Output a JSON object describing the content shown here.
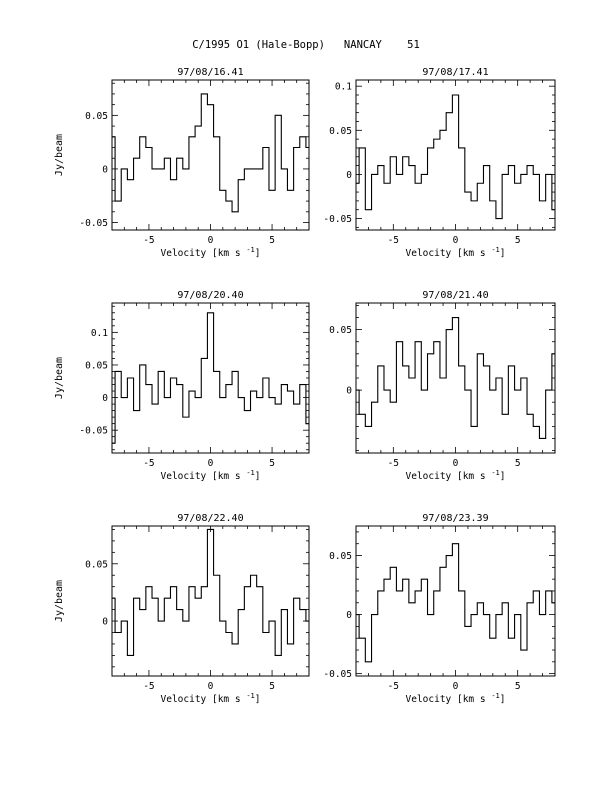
{
  "figure": {
    "title": "C/1995 O1 (Hale-Bopp)   NANCAY    51"
  },
  "chart_data": [
    {
      "type": "line",
      "title": "97/08/16.41",
      "xlabel": "Velocity [km s⁻¹]",
      "ylabel": "Jy/beam",
      "xlim": [
        -8,
        8
      ],
      "ylim": [
        -0.057,
        0.083
      ],
      "xticks": [
        -5,
        0,
        5
      ],
      "yticks": [
        -0.05,
        0,
        0.05
      ],
      "ytick_labels": [
        "-0.05",
        "0",
        "0.05"
      ],
      "series": [
        {
          "x": [
            -8.0,
            -7.5,
            -7.0,
            -6.5,
            -6.0,
            -5.5,
            -5.0,
            -4.5,
            -4.0,
            -3.5,
            -3.0,
            -2.5,
            -2.0,
            -1.5,
            -1.0,
            -0.5,
            0.0,
            0.5,
            1.0,
            1.5,
            2.0,
            2.5,
            3.0,
            3.5,
            4.0,
            4.5,
            5.0,
            5.5,
            6.0,
            6.5,
            7.0,
            7.5,
            8.0
          ],
          "y": [
            0.03,
            -0.03,
            0.0,
            -0.01,
            0.01,
            0.03,
            0.02,
            0.0,
            0.0,
            0.01,
            -0.01,
            0.01,
            0.0,
            0.03,
            0.04,
            0.07,
            0.06,
            0.03,
            -0.02,
            -0.03,
            -0.04,
            -0.01,
            0.0,
            0.0,
            0.0,
            0.02,
            -0.02,
            0.05,
            0.0,
            -0.02,
            0.02,
            0.03,
            0.02
          ]
        }
      ]
    },
    {
      "type": "line",
      "title": "97/08/17.41",
      "xlabel": "Velocity [km s⁻¹]",
      "ylabel": "",
      "xlim": [
        -8,
        8
      ],
      "ylim": [
        -0.063,
        0.107
      ],
      "xticks": [
        -5,
        0,
        5
      ],
      "yticks": [
        -0.05,
        0,
        0.05,
        0.1
      ],
      "ytick_labels": [
        "-0.05",
        "0",
        "0.05",
        "0.1"
      ],
      "series": [
        {
          "x": [
            -8.0,
            -7.5,
            -7.0,
            -6.5,
            -6.0,
            -5.5,
            -5.0,
            -4.5,
            -4.0,
            -3.5,
            -3.0,
            -2.5,
            -2.0,
            -1.5,
            -1.0,
            -0.5,
            0.0,
            0.5,
            1.0,
            1.5,
            2.0,
            2.5,
            3.0,
            3.5,
            4.0,
            4.5,
            5.0,
            5.5,
            6.0,
            6.5,
            7.0,
            7.5,
            8.0
          ],
          "y": [
            -0.01,
            0.03,
            -0.04,
            0.0,
            0.01,
            -0.01,
            0.02,
            0.0,
            0.02,
            0.01,
            -0.01,
            0.0,
            0.03,
            0.04,
            0.05,
            0.07,
            0.09,
            0.03,
            -0.02,
            -0.03,
            -0.01,
            0.01,
            -0.03,
            -0.05,
            0.0,
            0.01,
            -0.01,
            0.0,
            0.01,
            0.0,
            -0.03,
            0.0,
            -0.04
          ]
        }
      ]
    },
    {
      "type": "line",
      "title": "97/08/20.40",
      "xlabel": "Velocity [km s⁻¹]",
      "ylabel": "Jy/beam",
      "xlim": [
        -8,
        8
      ],
      "ylim": [
        -0.085,
        0.145
      ],
      "xticks": [
        -5,
        0,
        5
      ],
      "yticks": [
        -0.05,
        0,
        0.05,
        0.1
      ],
      "ytick_labels": [
        "-0.05",
        "0",
        "0.05",
        "0.1"
      ],
      "series": [
        {
          "x": [
            -8.0,
            -7.5,
            -7.0,
            -6.5,
            -6.0,
            -5.5,
            -5.0,
            -4.5,
            -4.0,
            -3.5,
            -3.0,
            -2.5,
            -2.0,
            -1.5,
            -1.0,
            -0.5,
            0.0,
            0.5,
            1.0,
            1.5,
            2.0,
            2.5,
            3.0,
            3.5,
            4.0,
            4.5,
            5.0,
            5.5,
            6.0,
            6.5,
            7.0,
            7.5,
            8.0
          ],
          "y": [
            -0.07,
            0.04,
            0.0,
            0.03,
            -0.02,
            0.05,
            0.02,
            -0.01,
            0.04,
            0.0,
            0.03,
            0.02,
            -0.03,
            0.01,
            0.0,
            0.06,
            0.13,
            0.04,
            0.0,
            0.02,
            0.04,
            0.0,
            -0.02,
            0.01,
            0.0,
            0.03,
            0.0,
            -0.01,
            0.02,
            0.01,
            -0.01,
            0.02,
            -0.04
          ]
        }
      ]
    },
    {
      "type": "line",
      "title": "97/08/21.40",
      "xlabel": "Velocity [km s⁻¹]",
      "ylabel": "",
      "xlim": [
        -8,
        8
      ],
      "ylim": [
        -0.052,
        0.072
      ],
      "xticks": [
        -5,
        0,
        5
      ],
      "yticks": [
        0,
        0.05
      ],
      "ytick_labels": [
        "0",
        "0.05"
      ],
      "series": [
        {
          "x": [
            -8.0,
            -7.5,
            -7.0,
            -6.5,
            -6.0,
            -5.5,
            -5.0,
            -4.5,
            -4.0,
            -3.5,
            -3.0,
            -2.5,
            -2.0,
            -1.5,
            -1.0,
            -0.5,
            0.0,
            0.5,
            1.0,
            1.5,
            2.0,
            2.5,
            3.0,
            3.5,
            4.0,
            4.5,
            5.0,
            5.5,
            6.0,
            6.5,
            7.0,
            7.5,
            8.0
          ],
          "y": [
            0.0,
            -0.02,
            -0.03,
            -0.01,
            0.02,
            0.0,
            -0.01,
            0.04,
            0.02,
            0.01,
            0.04,
            0.0,
            0.03,
            0.04,
            0.01,
            0.05,
            0.06,
            0.02,
            0.0,
            -0.03,
            0.03,
            0.02,
            0.0,
            0.01,
            -0.02,
            0.02,
            0.0,
            0.01,
            -0.02,
            -0.03,
            -0.04,
            0.0,
            0.03
          ]
        }
      ]
    },
    {
      "type": "line",
      "title": "97/08/22.40",
      "xlabel": "Velocity [km s⁻¹]",
      "ylabel": "Jy/beam",
      "xlim": [
        -8,
        8
      ],
      "ylim": [
        -0.048,
        0.083
      ],
      "xticks": [
        -5,
        0,
        5
      ],
      "yticks": [
        0,
        0.05
      ],
      "ytick_labels": [
        "0",
        "0.05"
      ],
      "series": [
        {
          "x": [
            -8.0,
            -7.5,
            -7.0,
            -6.5,
            -6.0,
            -5.5,
            -5.0,
            -4.5,
            -4.0,
            -3.5,
            -3.0,
            -2.5,
            -2.0,
            -1.5,
            -1.0,
            -0.5,
            0.0,
            0.5,
            1.0,
            1.5,
            2.0,
            2.5,
            3.0,
            3.5,
            4.0,
            4.5,
            5.0,
            5.5,
            6.0,
            6.5,
            7.0,
            7.5,
            8.0
          ],
          "y": [
            0.02,
            -0.01,
            0.0,
            -0.03,
            0.02,
            0.01,
            0.03,
            0.02,
            0.0,
            0.02,
            0.03,
            0.01,
            0.0,
            0.03,
            0.02,
            0.03,
            0.08,
            0.04,
            0.0,
            -0.01,
            -0.02,
            0.01,
            0.03,
            0.04,
            0.03,
            -0.01,
            0.0,
            -0.03,
            0.01,
            -0.02,
            0.02,
            0.01,
            0.0
          ]
        }
      ]
    },
    {
      "type": "line",
      "title": "97/08/23.39",
      "xlabel": "Velocity [km s⁻¹]",
      "ylabel": "",
      "xlim": [
        -8,
        8
      ],
      "ylim": [
        -0.052,
        0.075
      ],
      "xticks": [
        -5,
        0,
        5
      ],
      "yticks": [
        -0.05,
        0,
        0.05
      ],
      "ytick_labels": [
        "-0.05",
        "0",
        "0.05"
      ],
      "series": [
        {
          "x": [
            -8.0,
            -7.5,
            -7.0,
            -6.5,
            -6.0,
            -5.5,
            -5.0,
            -4.5,
            -4.0,
            -3.5,
            -3.0,
            -2.5,
            -2.0,
            -1.5,
            -1.0,
            -0.5,
            0.0,
            0.5,
            1.0,
            1.5,
            2.0,
            2.5,
            3.0,
            3.5,
            4.0,
            4.5,
            5.0,
            5.5,
            6.0,
            6.5,
            7.0,
            7.5,
            8.0
          ],
          "y": [
            0.0,
            -0.02,
            -0.04,
            0.0,
            0.02,
            0.03,
            0.04,
            0.02,
            0.03,
            0.01,
            0.02,
            0.03,
            0.0,
            0.02,
            0.04,
            0.05,
            0.06,
            0.02,
            -0.01,
            0.0,
            0.01,
            0.0,
            -0.02,
            0.0,
            0.01,
            -0.02,
            0.0,
            -0.03,
            0.01,
            0.02,
            0.0,
            0.02,
            0.01
          ]
        }
      ]
    }
  ]
}
